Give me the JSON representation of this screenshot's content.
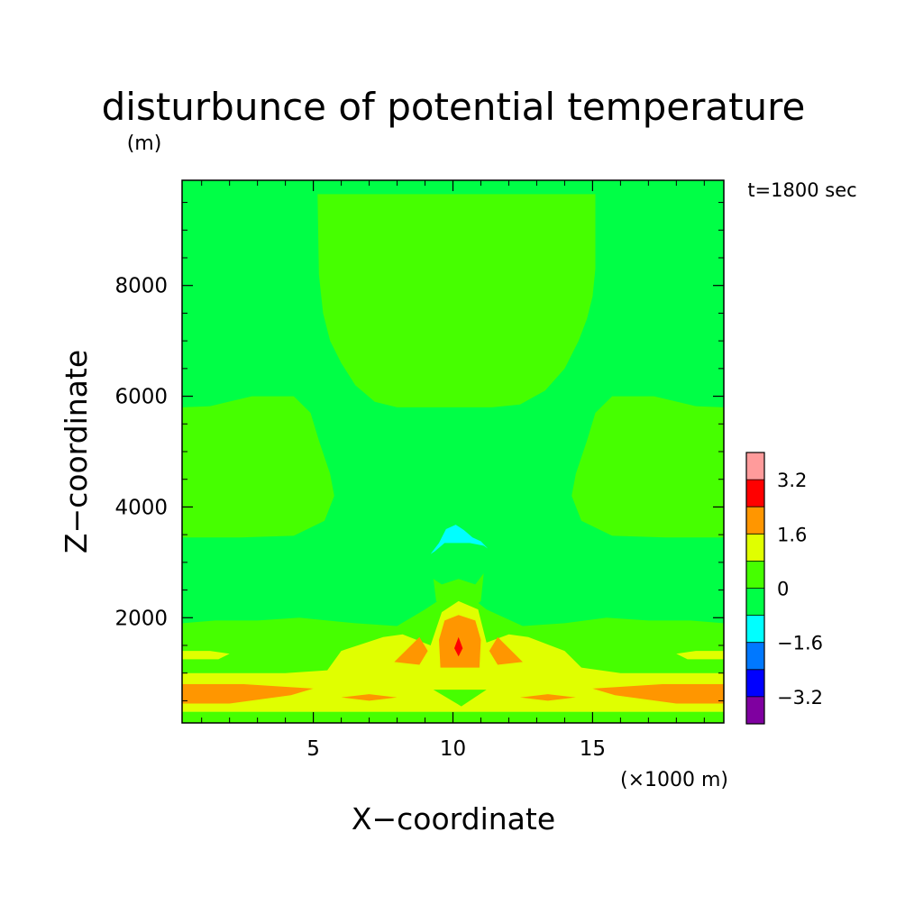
{
  "chart_data": {
    "type": "heatmap",
    "title": "disturbunce of potential temperature",
    "units": "(m)",
    "time_label": "t=1800 sec",
    "xlabel": "X−coordinate",
    "x_unit_label": "(×1000 m)",
    "ylabel": "Z−coordinate",
    "xlim": [
      0.3,
      19.7
    ],
    "ylim": [
      100,
      9900
    ],
    "x_ticks": [
      5,
      10,
      15
    ],
    "x_tick_labels": [
      "5",
      "10",
      "15"
    ],
    "y_ticks": [
      2000,
      4000,
      6000,
      8000
    ],
    "y_tick_labels": [
      "2000",
      "4000",
      "6000",
      "8000"
    ],
    "colorbar": {
      "levels": [
        -4.0,
        -3.2,
        -2.4,
        -1.6,
        -0.8,
        0,
        0.8,
        1.6,
        2.4,
        3.2,
        4.0
      ],
      "colors": [
        "#7f00a0",
        "#0000ff",
        "#0078ff",
        "#00ffff",
        "#00ff46",
        "#46ff00",
        "#e0ff00",
        "#ff9600",
        "#ff0000",
        "#ff9b9b"
      ],
      "tick_labels": [
        "−3.2",
        "−1.6",
        "0",
        "1.6",
        "3.2"
      ]
    },
    "background_color": "#00ff46",
    "regions": [
      {
        "name": "upper-positive-lobe",
        "level": 5,
        "points": [
          [
            5.15,
            9650
          ],
          [
            15.1,
            9650
          ],
          [
            15.1,
            8300
          ],
          [
            15.0,
            7800
          ],
          [
            14.8,
            7400
          ],
          [
            14.5,
            7000
          ],
          [
            14.0,
            6500
          ],
          [
            13.3,
            6100
          ],
          [
            12.4,
            5850
          ],
          [
            11.4,
            5800
          ],
          [
            9.0,
            5800
          ],
          [
            8.0,
            5800
          ],
          [
            7.2,
            5900
          ],
          [
            6.5,
            6200
          ],
          [
            6.0,
            6600
          ],
          [
            5.6,
            7000
          ],
          [
            5.35,
            7500
          ],
          [
            5.2,
            8200
          ]
        ]
      },
      {
        "name": "left-positive-lobe",
        "level": 5,
        "points": [
          [
            0.3,
            5800
          ],
          [
            1.3,
            5820
          ],
          [
            2.8,
            6000
          ],
          [
            4.3,
            6000
          ],
          [
            4.9,
            5700
          ],
          [
            5.2,
            5200
          ],
          [
            5.6,
            4600
          ],
          [
            5.75,
            4200
          ],
          [
            5.4,
            3750
          ],
          [
            4.3,
            3480
          ],
          [
            2.4,
            3450
          ],
          [
            0.3,
            3450
          ]
        ]
      },
      {
        "name": "right-positive-lobe",
        "level": 5,
        "points": [
          [
            19.7,
            5800
          ],
          [
            18.7,
            5820
          ],
          [
            17.2,
            6000
          ],
          [
            15.7,
            6000
          ],
          [
            15.1,
            5700
          ],
          [
            14.8,
            5200
          ],
          [
            14.4,
            4600
          ],
          [
            14.25,
            4200
          ],
          [
            14.6,
            3750
          ],
          [
            15.7,
            3480
          ],
          [
            17.6,
            3450
          ],
          [
            19.7,
            3450
          ]
        ]
      },
      {
        "name": "cold-bubble",
        "level": 3,
        "points": [
          [
            9.2,
            3150
          ],
          [
            9.5,
            3350
          ],
          [
            9.75,
            3600
          ],
          [
            10.1,
            3680
          ],
          [
            10.4,
            3580
          ],
          [
            10.7,
            3450
          ],
          [
            11.0,
            3380
          ],
          [
            11.25,
            3250
          ],
          [
            11.1,
            3300
          ],
          [
            10.6,
            3350
          ],
          [
            9.7,
            3350
          ],
          [
            9.35,
            3200
          ]
        ]
      },
      {
        "name": "mid-positive-plume",
        "level": 5,
        "points": [
          [
            9.3,
            2700
          ],
          [
            9.6,
            2600
          ],
          [
            10.2,
            2700
          ],
          [
            10.8,
            2600
          ],
          [
            11.1,
            2800
          ],
          [
            11.0,
            2300
          ],
          [
            10.2,
            2000
          ],
          [
            9.4,
            2300
          ]
        ]
      },
      {
        "name": "low-positive-band",
        "level": 5,
        "points": [
          [
            0.3,
            1900
          ],
          [
            1.5,
            1950
          ],
          [
            3.0,
            1950
          ],
          [
            4.5,
            2000
          ],
          [
            6.5,
            1900
          ],
          [
            8.0,
            1850
          ],
          [
            9.0,
            2150
          ],
          [
            10.2,
            2550
          ],
          [
            11.2,
            2150
          ],
          [
            12.5,
            1850
          ],
          [
            14.0,
            1900
          ],
          [
            15.5,
            2000
          ],
          [
            17.0,
            1950
          ],
          [
            18.5,
            1950
          ],
          [
            19.7,
            1900
          ],
          [
            19.7,
            1000
          ],
          [
            0.3,
            1000
          ]
        ]
      },
      {
        "name": "surface-positive-band",
        "level": 5,
        "points": [
          [
            0.3,
            300
          ],
          [
            19.7,
            300
          ],
          [
            19.7,
            100
          ],
          [
            0.3,
            100
          ]
        ]
      },
      {
        "name": "left-yellow-strip",
        "level": 6,
        "points": [
          [
            0.3,
            1400
          ],
          [
            1.3,
            1400
          ],
          [
            2.0,
            1350
          ],
          [
            1.6,
            1250
          ],
          [
            0.3,
            1250
          ]
        ]
      },
      {
        "name": "right-yellow-strip",
        "level": 6,
        "points": [
          [
            19.7,
            1400
          ],
          [
            18.7,
            1400
          ],
          [
            18.0,
            1350
          ],
          [
            18.4,
            1250
          ],
          [
            19.7,
            1250
          ]
        ]
      },
      {
        "name": "low-yellow-band",
        "level": 6,
        "points": [
          [
            0.3,
            1000
          ],
          [
            4.0,
            1000
          ],
          [
            5.5,
            1050
          ],
          [
            6.0,
            1400
          ],
          [
            7.5,
            1650
          ],
          [
            8.2,
            1700
          ],
          [
            9.2,
            1500
          ],
          [
            9.6,
            2100
          ],
          [
            10.2,
            2300
          ],
          [
            10.9,
            2150
          ],
          [
            11.2,
            1550
          ],
          [
            12.0,
            1700
          ],
          [
            12.7,
            1650
          ],
          [
            14.0,
            1400
          ],
          [
            14.6,
            1100
          ],
          [
            16.0,
            1000
          ],
          [
            19.7,
            1000
          ],
          [
            19.7,
            300
          ],
          [
            0.3,
            300
          ]
        ]
      },
      {
        "name": "near-surface-dip",
        "level": 5,
        "points": [
          [
            9.3,
            700
          ],
          [
            11.2,
            700
          ],
          [
            10.3,
            400
          ]
        ]
      },
      {
        "name": "left-orange-band",
        "level": 7,
        "points": [
          [
            0.3,
            800
          ],
          [
            2.5,
            800
          ],
          [
            5.0,
            720
          ],
          [
            4.2,
            600
          ],
          [
            2.0,
            450
          ],
          [
            0.3,
            450
          ]
        ]
      },
      {
        "name": "right-orange-band",
        "level": 7,
        "points": [
          [
            19.7,
            800
          ],
          [
            17.5,
            800
          ],
          [
            15.0,
            720
          ],
          [
            15.8,
            600
          ],
          [
            18.0,
            450
          ],
          [
            19.7,
            450
          ]
        ]
      },
      {
        "name": "left-orange-dash",
        "level": 7,
        "points": [
          [
            6.0,
            560
          ],
          [
            7.0,
            620
          ],
          [
            8.0,
            560
          ],
          [
            7.0,
            500
          ]
        ]
      },
      {
        "name": "right-orange-dash",
        "level": 7,
        "points": [
          [
            12.4,
            560
          ],
          [
            13.4,
            620
          ],
          [
            14.4,
            560
          ],
          [
            13.4,
            500
          ]
        ]
      },
      {
        "name": "left-orange-blob",
        "level": 7,
        "points": [
          [
            7.9,
            1200
          ],
          [
            8.5,
            1500
          ],
          [
            8.8,
            1650
          ],
          [
            9.1,
            1400
          ],
          [
            8.8,
            1150
          ]
        ]
      },
      {
        "name": "right-orange-blob",
        "level": 7,
        "points": [
          [
            12.5,
            1200
          ],
          [
            11.9,
            1500
          ],
          [
            11.6,
            1650
          ],
          [
            11.3,
            1400
          ],
          [
            11.6,
            1150
          ]
        ]
      },
      {
        "name": "central-warm-core",
        "level": 7,
        "points": [
          [
            9.55,
            1100
          ],
          [
            9.5,
            1600
          ],
          [
            9.7,
            1950
          ],
          [
            10.2,
            2050
          ],
          [
            10.8,
            1950
          ],
          [
            11.0,
            1600
          ],
          [
            10.95,
            1100
          ]
        ]
      },
      {
        "name": "central-red-max",
        "level": 8,
        "points": [
          [
            10.2,
            1650
          ],
          [
            10.35,
            1450
          ],
          [
            10.2,
            1300
          ],
          [
            10.05,
            1450
          ]
        ]
      }
    ]
  }
}
